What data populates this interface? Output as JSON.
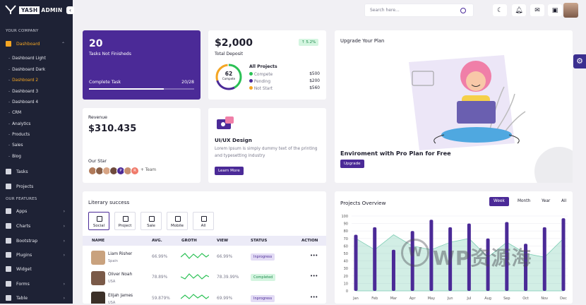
{
  "brand": {
    "box": "YASH",
    "name": "ADMIN"
  },
  "sidebar": {
    "company_label": "YOUR COMPANY",
    "dashboard": "Dashboard",
    "sub_items": [
      "Dashboard Light",
      "Dashboard Dark",
      "Dashboard 2",
      "Dashboard 3",
      "Dashboard 4",
      "CRM",
      "Analytics",
      "Products",
      "Sales",
      "Blog"
    ],
    "tasks": "Tasks",
    "projects": "Projects",
    "features_label": "OUR FEATURES",
    "features": [
      "Apps",
      "Charts",
      "Bootstrap",
      "Plugins",
      "Widget",
      "Forms",
      "Table"
    ]
  },
  "topbar": {
    "search_placeholder": "Search here..."
  },
  "tasks_card": {
    "count": "20",
    "label": "Tasks Not Finisheds",
    "progress_label": "Complete Task",
    "progress_value": "20/28",
    "progress_fraction": 0.714
  },
  "deposit_card": {
    "amount": "$2,000",
    "label": "Total Deposit",
    "badge": "5.2%",
    "donut_value": "62",
    "donut_label": "Compete",
    "all_projects": "All Projects",
    "legend": [
      {
        "name": "Compete",
        "value": "$500",
        "color": "#2bc155"
      },
      {
        "name": "Pending",
        "value": "$200",
        "color": "#4b2a97"
      },
      {
        "name": "Not Start",
        "value": "$560",
        "color": "#f5a623"
      }
    ]
  },
  "upgrade_card": {
    "title": "Upgrade Your Plan",
    "headline": "Enviroment with Pro Plan for Free",
    "button": "Upgrade"
  },
  "revenue_card": {
    "label": "Revenue",
    "amount": "$310.435",
    "our_star": "Our Star",
    "team_more": "+ Team",
    "team": [
      "",
      "",
      "",
      "P",
      "",
      "",
      "R"
    ]
  },
  "uiux_card": {
    "title": "UI/UX Design",
    "desc": "Lorem Ipsum is simply dummy text of the printing and typesetting industry",
    "button": "Learn More"
  },
  "literary": {
    "title": "Literary success",
    "tabs": [
      "Social",
      "Project",
      "Sale",
      "Mobile",
      "All"
    ],
    "headers": [
      "NAME",
      "AVG.",
      "GROTH",
      "VIEW",
      "STATUS",
      "ACTION"
    ],
    "rows": [
      {
        "name": "Liam Risher",
        "country": "Spain",
        "avg": "66.99%",
        "view": "66.99%",
        "status": "Inprogress"
      },
      {
        "name": "Oliver Noah",
        "country": "USA",
        "avg": "78.89%",
        "view": "78.39.99%",
        "status": "Completed"
      },
      {
        "name": "Elijah James",
        "country": "USA",
        "avg": "59.879%",
        "view": "69.99%",
        "status": "Inprogress"
      }
    ]
  },
  "projects_overview": {
    "title": "Projects Overview",
    "tabs": [
      "Week",
      "Month",
      "Year",
      "All"
    ]
  },
  "watermark": {
    "text": "WP资源海",
    "logo": "W"
  },
  "chart_data": {
    "type": "bar",
    "categories": [
      "Jan",
      "Feb",
      "Mar",
      "Apr",
      "May",
      "Jun",
      "Jul",
      "Aug",
      "Sep",
      "Oct",
      "Nov",
      "Dec"
    ],
    "series": [
      {
        "values": [
          75,
          85,
          55,
          80,
          95,
          85,
          90,
          70,
          92,
          63,
          85,
          97
        ]
      },
      {
        "values": [
          70,
          55,
          75,
          60,
          55,
          65,
          70,
          45,
          65,
          50,
          45,
          70
        ]
      }
    ],
    "ylim": [
      0,
      100
    ],
    "yticks": [
      0,
      10,
      20,
      30,
      40,
      50,
      60,
      70,
      80,
      90,
      100
    ],
    "grid": true,
    "legend": "none"
  }
}
